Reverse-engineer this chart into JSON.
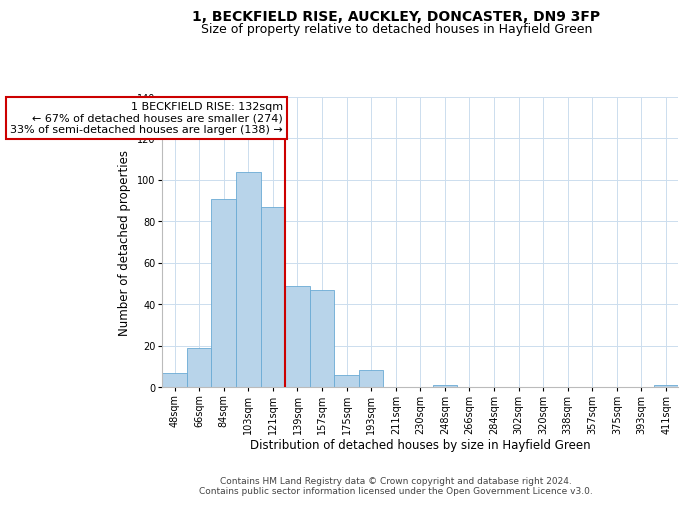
{
  "title1": "1, BECKFIELD RISE, AUCKLEY, DONCASTER, DN9 3FP",
  "title2": "Size of property relative to detached houses in Hayfield Green",
  "xlabel": "Distribution of detached houses by size in Hayfield Green",
  "ylabel": "Number of detached properties",
  "footer1": "Contains HM Land Registry data © Crown copyright and database right 2024.",
  "footer2": "Contains public sector information licensed under the Open Government Licence v3.0.",
  "annotation_line1": "1 BECKFIELD RISE: 132sqm",
  "annotation_line2": "← 67% of detached houses are smaller (274)",
  "annotation_line3": "33% of semi-detached houses are larger (138) →",
  "bar_labels": [
    "48sqm",
    "66sqm",
    "84sqm",
    "103sqm",
    "121sqm",
    "139sqm",
    "157sqm",
    "175sqm",
    "193sqm",
    "211sqm",
    "230sqm",
    "248sqm",
    "266sqm",
    "284sqm",
    "302sqm",
    "320sqm",
    "338sqm",
    "357sqm",
    "375sqm",
    "393sqm",
    "411sqm"
  ],
  "bar_heights": [
    7,
    19,
    91,
    104,
    87,
    49,
    47,
    6,
    8,
    0,
    0,
    1,
    0,
    0,
    0,
    0,
    0,
    0,
    0,
    0,
    1
  ],
  "bar_color": "#b8d4ea",
  "bar_edge_color": "#6aaad4",
  "red_line_x": 4.5,
  "ylim": [
    0,
    140
  ],
  "xlim_left": -0.5,
  "xlim_right": 20.5,
  "background_color": "#ffffff",
  "annotation_box_color": "#ffffff",
  "annotation_box_edge": "#cc0000",
  "red_line_color": "#cc0000",
  "title_fontsize": 10,
  "subtitle_fontsize": 9,
  "axis_label_fontsize": 8.5,
  "tick_fontsize": 7,
  "annotation_fontsize": 8,
  "footer_fontsize": 6.5
}
